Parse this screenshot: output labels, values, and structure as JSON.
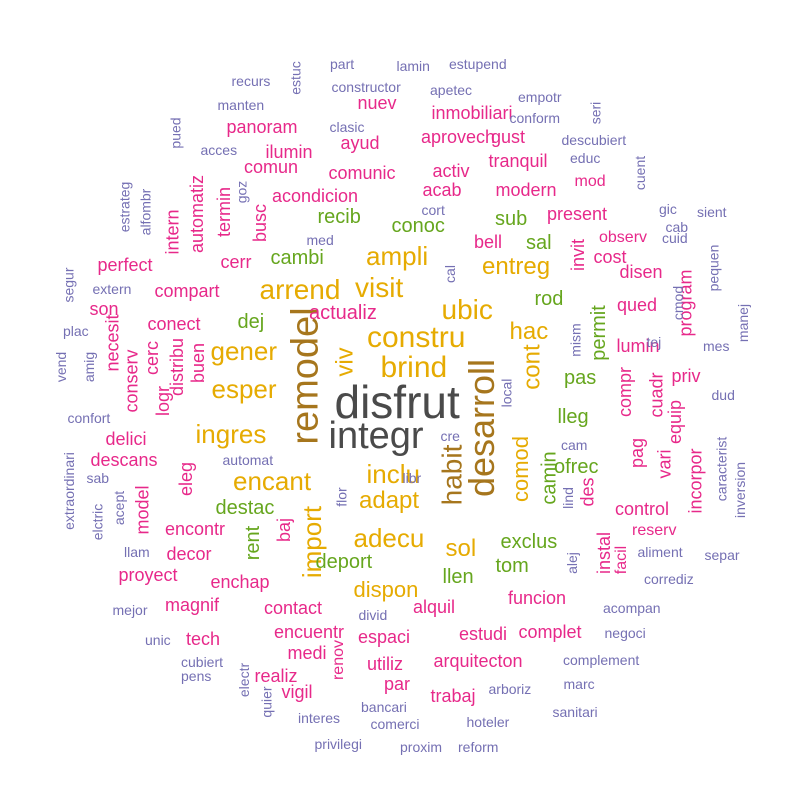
{
  "colors": {
    "gray": "#4a4a4a",
    "brown": "#a6761d",
    "gold": "#e6ab02",
    "green": "#66a61e",
    "pink": "#e7298a",
    "purple": "#7570b3"
  },
  "words": [
    {
      "text": "disfrut",
      "color": "gray"
    },
    {
      "text": "integr",
      "color": "gray"
    },
    {
      "text": "remodel",
      "color": "brown"
    },
    {
      "text": "desarroll",
      "color": "brown"
    },
    {
      "text": "habit",
      "color": "brown"
    },
    {
      "text": "constru",
      "color": "gold"
    },
    {
      "text": "brind",
      "color": "gold"
    },
    {
      "text": "visit",
      "color": "gold"
    },
    {
      "text": "ubic",
      "color": "gold"
    },
    {
      "text": "arrend",
      "color": "gold"
    },
    {
      "text": "ampli",
      "color": "gold"
    },
    {
      "text": "inclu",
      "color": "gold"
    },
    {
      "text": "import",
      "color": "gold"
    },
    {
      "text": "encant",
      "color": "gold"
    },
    {
      "text": "adecu",
      "color": "gold"
    },
    {
      "text": "gener",
      "color": "gold"
    },
    {
      "text": "esper",
      "color": "gold"
    },
    {
      "text": "ingres",
      "color": "gold"
    },
    {
      "text": "hac",
      "color": "gold"
    },
    {
      "text": "cont",
      "color": "gold"
    },
    {
      "text": "comod",
      "color": "gold"
    },
    {
      "text": "adapt",
      "color": "gold"
    },
    {
      "text": "viv",
      "color": "gold"
    },
    {
      "text": "entreg",
      "color": "gold"
    },
    {
      "text": "sol",
      "color": "gold"
    },
    {
      "text": "dispon",
      "color": "gold"
    },
    {
      "text": "actualiz",
      "color": "pink"
    },
    {
      "text": "conoc",
      "color": "green"
    },
    {
      "text": "recib",
      "color": "green"
    },
    {
      "text": "cambi",
      "color": "green"
    },
    {
      "text": "dej",
      "color": "green"
    },
    {
      "text": "sub",
      "color": "green"
    },
    {
      "text": "sal",
      "color": "green"
    },
    {
      "text": "rod",
      "color": "green"
    },
    {
      "text": "pas",
      "color": "green"
    },
    {
      "text": "lleg",
      "color": "green"
    },
    {
      "text": "permit",
      "color": "green"
    },
    {
      "text": "destac",
      "color": "green"
    },
    {
      "text": "rent",
      "color": "green"
    },
    {
      "text": "deport",
      "color": "green"
    },
    {
      "text": "exclus",
      "color": "green"
    },
    {
      "text": "tom",
      "color": "green"
    },
    {
      "text": "llen",
      "color": "green"
    },
    {
      "text": "camin",
      "color": "green"
    },
    {
      "text": "ofrec",
      "color": "green"
    },
    {
      "text": "comunic",
      "color": "pink"
    },
    {
      "text": "acondicion",
      "color": "pink"
    },
    {
      "text": "acab",
      "color": "pink"
    },
    {
      "text": "modern",
      "color": "pink"
    },
    {
      "text": "tranquil",
      "color": "pink"
    },
    {
      "text": "present",
      "color": "pink"
    },
    {
      "text": "bell",
      "color": "pink"
    },
    {
      "text": "busc",
      "color": "pink"
    },
    {
      "text": "cerr",
      "color": "pink"
    },
    {
      "text": "compart",
      "color": "pink"
    },
    {
      "text": "conect",
      "color": "pink"
    },
    {
      "text": "perfect",
      "color": "pink"
    },
    {
      "text": "son",
      "color": "pink"
    },
    {
      "text": "logr",
      "color": "pink"
    },
    {
      "text": "distribu",
      "color": "pink"
    },
    {
      "text": "buen",
      "color": "pink"
    },
    {
      "text": "cerc",
      "color": "pink"
    },
    {
      "text": "conserv",
      "color": "pink"
    },
    {
      "text": "necesit",
      "color": "pink"
    },
    {
      "text": "delici",
      "color": "pink"
    },
    {
      "text": "descans",
      "color": "pink"
    },
    {
      "text": "eleg",
      "color": "pink"
    },
    {
      "text": "model",
      "color": "pink"
    },
    {
      "text": "encontr",
      "color": "pink"
    },
    {
      "text": "baj",
      "color": "pink"
    },
    {
      "text": "decor",
      "color": "pink"
    },
    {
      "text": "proyect",
      "color": "pink"
    },
    {
      "text": "enchap",
      "color": "pink"
    },
    {
      "text": "magnif",
      "color": "pink"
    },
    {
      "text": "contact",
      "color": "pink"
    },
    {
      "text": "encuentr",
      "color": "pink"
    },
    {
      "text": "espaci",
      "color": "pink"
    },
    {
      "text": "alquil",
      "color": "pink"
    },
    {
      "text": "estudi",
      "color": "pink"
    },
    {
      "text": "funcion",
      "color": "pink"
    },
    {
      "text": "utiliz",
      "color": "pink"
    },
    {
      "text": "tech",
      "color": "pink"
    },
    {
      "text": "medi",
      "color": "pink"
    },
    {
      "text": "realiz",
      "color": "pink"
    },
    {
      "text": "vigil",
      "color": "pink"
    },
    {
      "text": "renov",
      "color": "pink"
    },
    {
      "text": "par",
      "color": "pink"
    },
    {
      "text": "trabaj",
      "color": "pink"
    },
    {
      "text": "arquitecton",
      "color": "pink"
    },
    {
      "text": "complet",
      "color": "pink"
    },
    {
      "text": "instal",
      "color": "pink"
    },
    {
      "text": "des",
      "color": "pink"
    },
    {
      "text": "control",
      "color": "pink"
    },
    {
      "text": "reserv",
      "color": "pink"
    },
    {
      "text": "facil",
      "color": "pink"
    },
    {
      "text": "pag",
      "color": "pink"
    },
    {
      "text": "compr",
      "color": "pink"
    },
    {
      "text": "cuadr",
      "color": "pink"
    },
    {
      "text": "equip",
      "color": "pink"
    },
    {
      "text": "vari",
      "color": "pink"
    },
    {
      "text": "incorpor",
      "color": "pink"
    },
    {
      "text": "priv",
      "color": "pink"
    },
    {
      "text": "lumin",
      "color": "pink"
    },
    {
      "text": "qued",
      "color": "pink"
    },
    {
      "text": "disen",
      "color": "pink"
    },
    {
      "text": "program",
      "color": "pink"
    },
    {
      "text": "cost",
      "color": "pink"
    },
    {
      "text": "observ",
      "color": "pink"
    },
    {
      "text": "invit",
      "color": "pink"
    },
    {
      "text": "mod",
      "color": "pink"
    },
    {
      "text": "gust",
      "color": "pink"
    },
    {
      "text": "activ",
      "color": "pink"
    },
    {
      "text": "aprovech",
      "color": "pink"
    },
    {
      "text": "inmobiliari",
      "color": "pink"
    },
    {
      "text": "nuev",
      "color": "pink"
    },
    {
      "text": "ayud",
      "color": "pink"
    },
    {
      "text": "panoram",
      "color": "pink"
    },
    {
      "text": "ilumin",
      "color": "pink"
    },
    {
      "text": "comun",
      "color": "pink"
    },
    {
      "text": "termin",
      "color": "pink"
    },
    {
      "text": "automatiz",
      "color": "pink"
    },
    {
      "text": "intern",
      "color": "pink"
    },
    {
      "text": "recurs",
      "color": "purple"
    },
    {
      "text": "estuc",
      "color": "purple"
    },
    {
      "text": "part",
      "color": "purple"
    },
    {
      "text": "lamin",
      "color": "purple"
    },
    {
      "text": "estupend",
      "color": "purple"
    },
    {
      "text": "constructor",
      "color": "purple"
    },
    {
      "text": "apetec",
      "color": "purple"
    },
    {
      "text": "manten",
      "color": "purple"
    },
    {
      "text": "empotr",
      "color": "purple"
    },
    {
      "text": "conform",
      "color": "purple"
    },
    {
      "text": "seri",
      "color": "purple"
    },
    {
      "text": "pued",
      "color": "purple"
    },
    {
      "text": "clasic",
      "color": "purple"
    },
    {
      "text": "descubiert",
      "color": "purple"
    },
    {
      "text": "acces",
      "color": "purple"
    },
    {
      "text": "educ",
      "color": "purple"
    },
    {
      "text": "cuent",
      "color": "purple"
    },
    {
      "text": "estrateg",
      "color": "purple"
    },
    {
      "text": "alfombr",
      "color": "purple"
    },
    {
      "text": "goz",
      "color": "purple"
    },
    {
      "text": "cort",
      "color": "purple"
    },
    {
      "text": "gic",
      "color": "purple"
    },
    {
      "text": "sient",
      "color": "purple"
    },
    {
      "text": "cab",
      "color": "purple"
    },
    {
      "text": "cuid",
      "color": "purple"
    },
    {
      "text": "med",
      "color": "purple"
    },
    {
      "text": "cal",
      "color": "purple"
    },
    {
      "text": "pequen",
      "color": "purple"
    },
    {
      "text": "segur",
      "color": "purple"
    },
    {
      "text": "extern",
      "color": "purple"
    },
    {
      "text": "cmod",
      "color": "purple"
    },
    {
      "text": "tej",
      "color": "purple"
    },
    {
      "text": "manej",
      "color": "purple"
    },
    {
      "text": "plac",
      "color": "purple"
    },
    {
      "text": "mes",
      "color": "purple"
    },
    {
      "text": "amig",
      "color": "purple"
    },
    {
      "text": "vend",
      "color": "purple"
    },
    {
      "text": "mism",
      "color": "purple"
    },
    {
      "text": "local",
      "color": "purple"
    },
    {
      "text": "dud",
      "color": "purple"
    },
    {
      "text": "confort",
      "color": "purple"
    },
    {
      "text": "cre",
      "color": "purple"
    },
    {
      "text": "cam",
      "color": "purple"
    },
    {
      "text": "caracterist",
      "color": "purple"
    },
    {
      "text": "inversion",
      "color": "purple"
    },
    {
      "text": "sab",
      "color": "purple"
    },
    {
      "text": "automat",
      "color": "purple"
    },
    {
      "text": "libr",
      "color": "purple"
    },
    {
      "text": "flor",
      "color": "purple"
    },
    {
      "text": "lind",
      "color": "purple"
    },
    {
      "text": "extraordinari",
      "color": "purple"
    },
    {
      "text": "acept",
      "color": "purple"
    },
    {
      "text": "elctric",
      "color": "purple"
    },
    {
      "text": "aliment",
      "color": "purple"
    },
    {
      "text": "separ",
      "color": "purple"
    },
    {
      "text": "llam",
      "color": "purple"
    },
    {
      "text": "corrediz",
      "color": "purple"
    },
    {
      "text": "alej",
      "color": "purple"
    },
    {
      "text": "divid",
      "color": "purple"
    },
    {
      "text": "mejor",
      "color": "purple"
    },
    {
      "text": "acompan",
      "color": "purple"
    },
    {
      "text": "unic",
      "color": "purple"
    },
    {
      "text": "negoci",
      "color": "purple"
    },
    {
      "text": "cubiert",
      "color": "purple"
    },
    {
      "text": "pens",
      "color": "purple"
    },
    {
      "text": "complement",
      "color": "purple"
    },
    {
      "text": "electr",
      "color": "purple"
    },
    {
      "text": "quier",
      "color": "purple"
    },
    {
      "text": "arboriz",
      "color": "purple"
    },
    {
      "text": "marc",
      "color": "purple"
    },
    {
      "text": "bancari",
      "color": "purple"
    },
    {
      "text": "sanitari",
      "color": "purple"
    },
    {
      "text": "interes",
      "color": "purple"
    },
    {
      "text": "comerci",
      "color": "purple"
    },
    {
      "text": "hoteler",
      "color": "purple"
    },
    {
      "text": "privilegi",
      "color": "purple"
    },
    {
      "text": "proxim",
      "color": "purple"
    },
    {
      "text": "reform",
      "color": "purple"
    }
  ]
}
